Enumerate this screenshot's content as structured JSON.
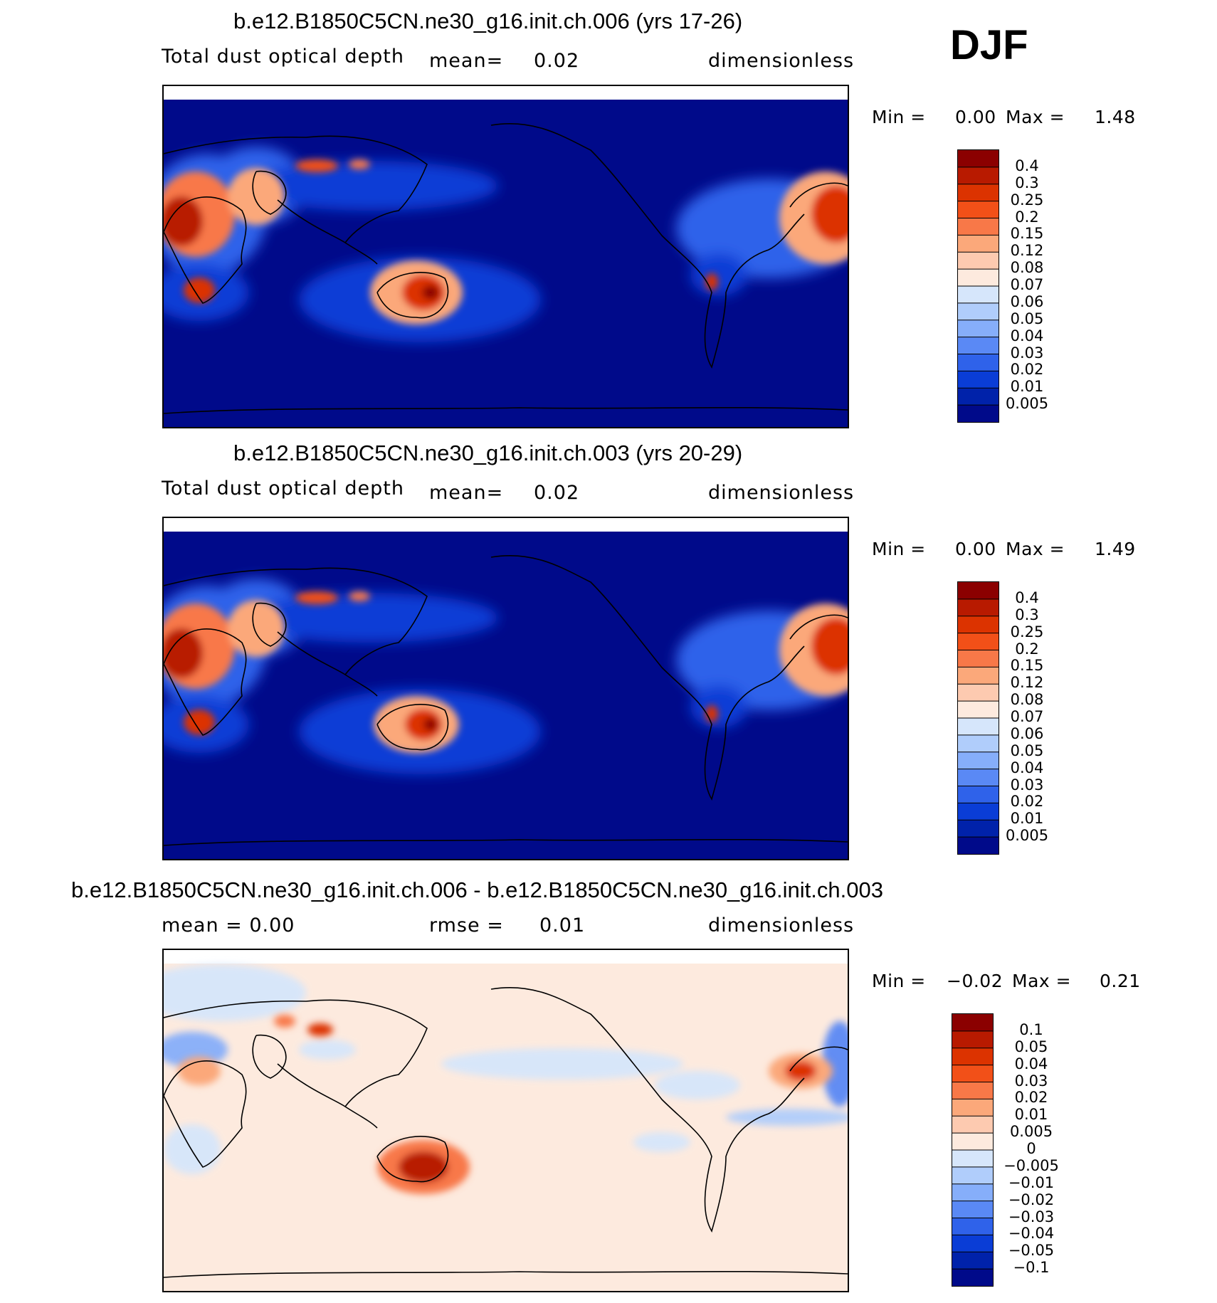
{
  "season_label": "DJF",
  "panels": [
    {
      "title": "b.e12.B1850C5CN.ne30_g16.init.ch.006 (yrs 17-26)",
      "left_label": "Total dust optical depth",
      "mid_prefix": "mean=",
      "mid_value": "0.02",
      "units": "dimensionless",
      "min_label": "Min =",
      "min_value": "0.00",
      "max_label": "Max =",
      "max_value": "1.48",
      "colorbar": {
        "levels": [
          "0.4",
          "0.3",
          "0.25",
          "0.2",
          "0.15",
          "0.12",
          "0.08",
          "0.07",
          "0.06",
          "0.05",
          "0.04",
          "0.03",
          "0.02",
          "0.01",
          "0.005"
        ],
        "colors": [
          "#8b0000",
          "#b81a00",
          "#dc3300",
          "#f25018",
          "#f87848",
          "#fba87a",
          "#fdcab0",
          "#fdeade",
          "#d6e6fb",
          "#b0cdfb",
          "#86aefa",
          "#5a89f5",
          "#2f62ea",
          "#0a3dd6",
          "#0022aa",
          "#000a8a"
        ]
      }
    },
    {
      "title": "b.e12.B1850C5CN.ne30_g16.init.ch.003 (yrs 20-29)",
      "left_label": "Total dust optical depth",
      "mid_prefix": "mean=",
      "mid_value": "0.02",
      "units": "dimensionless",
      "min_label": "Min =",
      "min_value": "0.00",
      "max_label": "Max =",
      "max_value": "1.49",
      "colorbar": {
        "levels": [
          "0.4",
          "0.3",
          "0.25",
          "0.2",
          "0.15",
          "0.12",
          "0.08",
          "0.07",
          "0.06",
          "0.05",
          "0.04",
          "0.03",
          "0.02",
          "0.01",
          "0.005"
        ],
        "colors": [
          "#8b0000",
          "#b81a00",
          "#dc3300",
          "#f25018",
          "#f87848",
          "#fba87a",
          "#fdcab0",
          "#fdeade",
          "#d6e6fb",
          "#b0cdfb",
          "#86aefa",
          "#5a89f5",
          "#2f62ea",
          "#0a3dd6",
          "#0022aa",
          "#000a8a"
        ]
      }
    },
    {
      "title": "b.e12.B1850C5CN.ne30_g16.init.ch.006 - b.e12.B1850C5CN.ne30_g16.init.ch.003",
      "left_label": "mean =   0.00",
      "mid_prefix": "rmse =",
      "mid_value": "0.01",
      "units": "dimensionless",
      "min_label": "Min =",
      "min_value": "−0.02",
      "max_label": "Max =",
      "max_value": "0.21",
      "colorbar": {
        "levels": [
          "0.1",
          "0.05",
          "0.04",
          "0.03",
          "0.02",
          "0.01",
          "0.005",
          "0",
          "−0.005",
          "−0.01",
          "−0.02",
          "−0.03",
          "−0.04",
          "−0.05",
          "−0.1"
        ],
        "colors": [
          "#8b0000",
          "#b81a00",
          "#dc3300",
          "#f25018",
          "#f87848",
          "#fba87a",
          "#fdcab0",
          "#fdeade",
          "#d6e6fb",
          "#b0cdfb",
          "#86aefa",
          "#5a89f5",
          "#2f62ea",
          "#0a3dd6",
          "#0022aa",
          "#000a8a"
        ]
      }
    }
  ]
}
